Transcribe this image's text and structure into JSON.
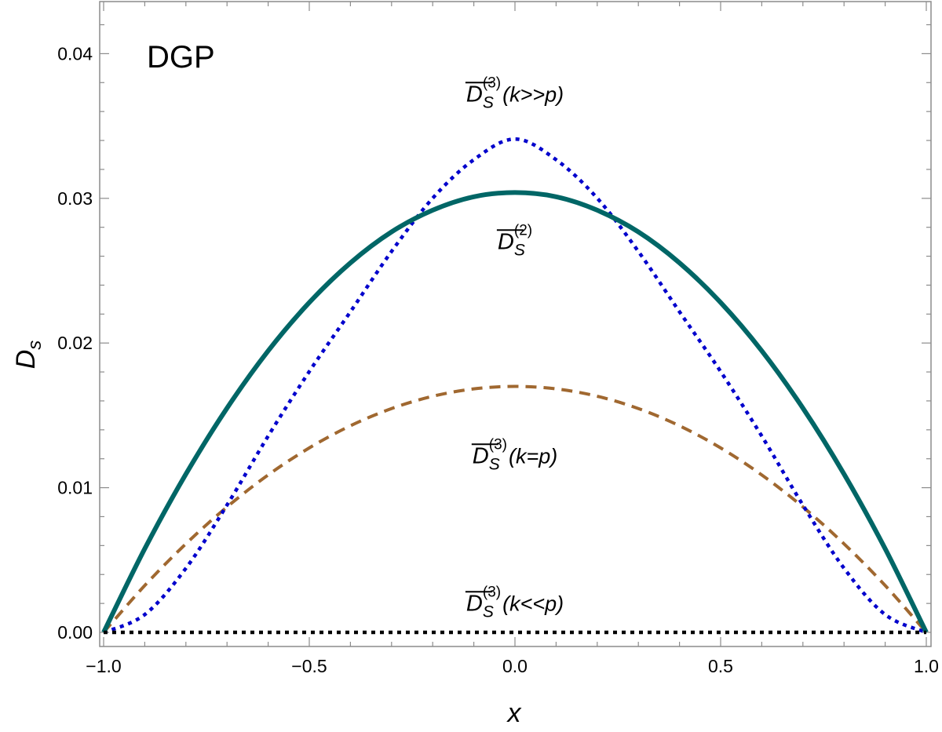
{
  "chart_data": {
    "type": "line",
    "panel_label": "DGP",
    "xlabel": "x",
    "ylabel": {
      "base": "D",
      "sub": "s"
    },
    "xlim": [
      -1.0,
      1.0
    ],
    "ylim": [
      0.0,
      0.0435
    ],
    "grid": false,
    "legend": "none",
    "xticks": [
      -1.0,
      -0.5,
      0.0,
      0.5,
      1.0
    ],
    "xtick_labels": [
      "−1.0",
      "−0.5",
      "0.0",
      "0.5",
      "1.0"
    ],
    "yticks": [
      0.0,
      0.01,
      0.02,
      0.03,
      0.04
    ],
    "ytick_labels": [
      "0.00",
      "0.01",
      "0.02",
      "0.03",
      "0.04"
    ],
    "x": [
      -1.0,
      -0.9,
      -0.8,
      -0.7,
      -0.6,
      -0.5,
      -0.4,
      -0.3,
      -0.2,
      -0.1,
      0.0,
      0.1,
      0.2,
      0.3,
      0.4,
      0.5,
      0.6,
      0.7,
      0.8,
      0.9,
      1.0
    ],
    "series": [
      {
        "key": "d2",
        "color": "#006666",
        "style": "solid",
        "values": [
          0.0,
          0.00578,
          0.01094,
          0.0155,
          0.01946,
          0.0228,
          0.02554,
          0.02768,
          0.02918,
          0.03011,
          0.0304,
          0.03011,
          0.02918,
          0.02768,
          0.02554,
          0.0228,
          0.01946,
          0.0155,
          0.01094,
          0.00578,
          0.0
        ]
      },
      {
        "key": "d3_kggp",
        "color": "#0000cc",
        "style": "dotted",
        "values": [
          0.0,
          0.00123,
          0.00443,
          0.0088,
          0.01357,
          0.01803,
          0.02216,
          0.02633,
          0.03001,
          0.03267,
          0.0341,
          0.03267,
          0.03001,
          0.02633,
          0.02216,
          0.01803,
          0.01357,
          0.0088,
          0.00443,
          0.00123,
          0.0
        ]
      },
      {
        "key": "d3_keqp",
        "color": "#a06830",
        "style": "dashed",
        "values": [
          0.0,
          0.00324,
          0.00612,
          0.00867,
          0.01088,
          0.01275,
          0.01428,
          0.01547,
          0.01632,
          0.01683,
          0.017,
          0.01683,
          0.01632,
          0.01547,
          0.01428,
          0.01275,
          0.01088,
          0.00867,
          0.00612,
          0.00324,
          0.0
        ]
      },
      {
        "key": "d3_kllp",
        "color": "#000000",
        "style": "dotted",
        "values": [
          0.0,
          0.0,
          0.0,
          0.0,
          0.0,
          0.0,
          0.0,
          0.0,
          0.0,
          0.0,
          0.0,
          0.0,
          0.0,
          0.0,
          0.0,
          0.0,
          0.0,
          0.0,
          0.0,
          0.0,
          0.0
        ]
      }
    ],
    "annotations": [
      {
        "key": "ann-d3-kggp",
        "base": "D",
        "sub": "S",
        "sup": "(3)",
        "arg": "(k>>p)",
        "x": 0.0,
        "y": 0.0367
      },
      {
        "key": "ann-d2",
        "base": "D",
        "sub": "S",
        "sup": "(2)",
        "arg": "",
        "x": 0.0,
        "y": 0.0265
      },
      {
        "key": "ann-d3-keqp",
        "base": "D",
        "sub": "S",
        "sup": "(3)",
        "arg": "(k=p)",
        "x": 0.0,
        "y": 0.0117
      },
      {
        "key": "ann-d3-kllp",
        "base": "D",
        "sub": "S",
        "sup": "(3)",
        "arg": "(k<<p)",
        "x": 0.0,
        "y": 0.0015
      }
    ]
  }
}
